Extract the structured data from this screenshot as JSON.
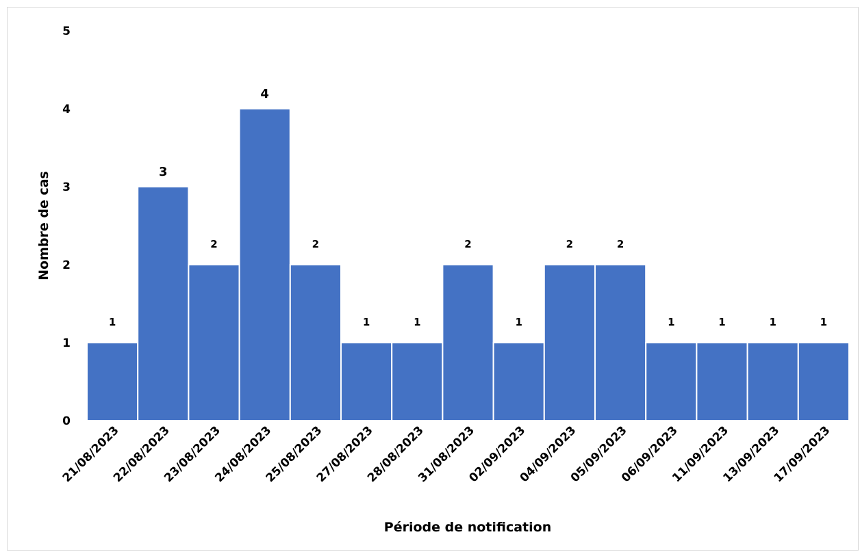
{
  "chart_data": {
    "type": "bar",
    "categories": [
      "21/08/2023",
      "22/08/2023",
      "23/08/2023",
      "24/08/2023",
      "25/08/2023",
      "27/08/2023",
      "28/08/2023",
      "31/08/2023",
      "02/09/2023",
      "04/09/2023",
      "05/09/2023",
      "06/09/2023",
      "11/09/2023",
      "13/09/2023",
      "17/09/2023"
    ],
    "values": [
      1,
      3,
      2,
      4,
      2,
      1,
      1,
      2,
      1,
      2,
      2,
      1,
      1,
      1,
      1
    ],
    "title": "",
    "xlabel": "Période de notification",
    "ylabel": "Nombre de cas",
    "ylim": [
      0,
      5
    ],
    "yticks": [
      0,
      1,
      2,
      3,
      4,
      5
    ],
    "bar_color": "#4472c4",
    "bar_edge_color": "#ffffff",
    "grid": false,
    "legend": "none",
    "data_labels": true
  }
}
